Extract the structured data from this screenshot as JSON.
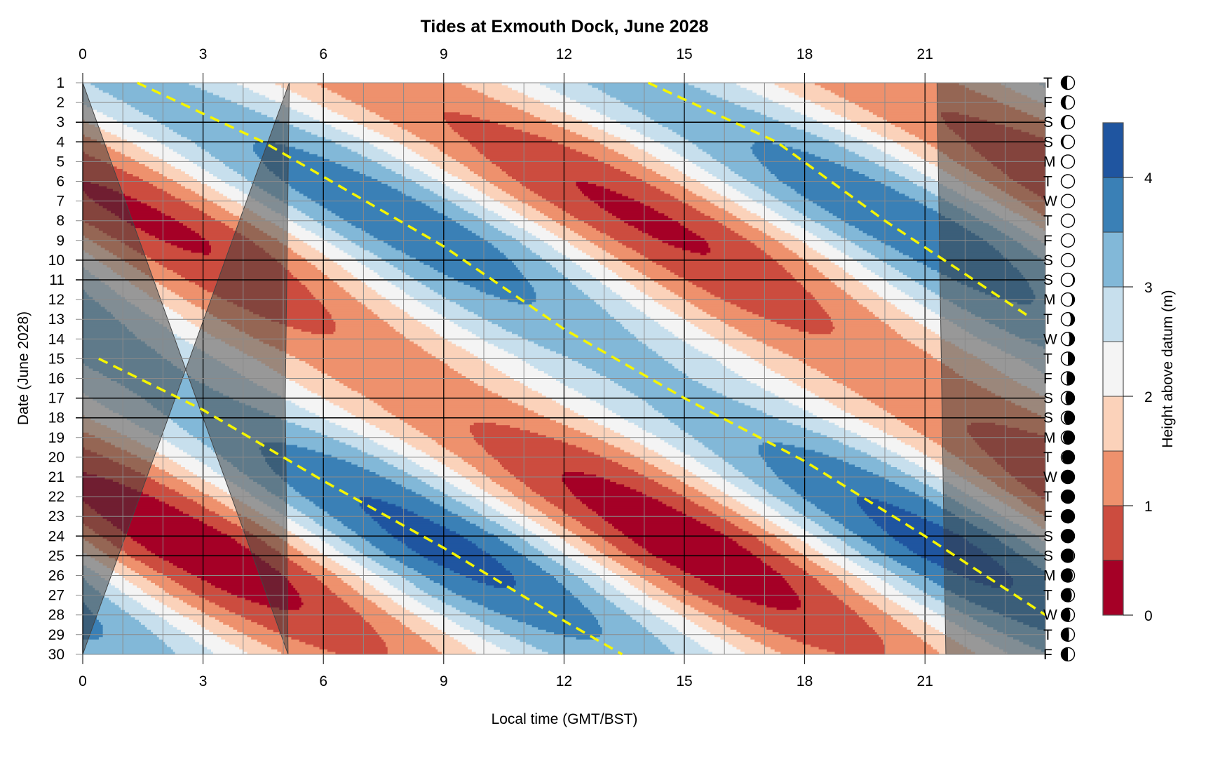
{
  "chart_data": {
    "type": "heatmap",
    "title": "Tides at Exmouth Dock, June 2028",
    "xlabel": "Local time (GMT/BST)",
    "ylabel": "Date (June 2028)",
    "colorbar_label": "Height above datum (m)",
    "xlim": [
      0,
      24
    ],
    "ylim": [
      1,
      30
    ],
    "x_ticks": [
      0,
      3,
      6,
      9,
      12,
      15,
      18,
      21
    ],
    "y_ticks": [
      1,
      2,
      3,
      4,
      5,
      6,
      7,
      8,
      9,
      10,
      11,
      12,
      13,
      14,
      15,
      16,
      17,
      18,
      19,
      20,
      21,
      22,
      23,
      24,
      25,
      26,
      27,
      28,
      29,
      30
    ],
    "colorbar_ticks": [
      0,
      1,
      2,
      3,
      4
    ],
    "levels": [
      0,
      0.5,
      1,
      1.5,
      2,
      2.5,
      3,
      3.5,
      4,
      4.5
    ],
    "level_colors": [
      "#a50026",
      "#cc4c3f",
      "#ee916d",
      "#fbd2ba",
      "#f4f4f4",
      "#c7dfed",
      "#82b8d8",
      "#3a80b6",
      "#1f55a0"
    ],
    "weekend_days": [
      3,
      4,
      10,
      11,
      17,
      18,
      24,
      25
    ],
    "weekday_letters": [
      "T",
      "F",
      "S",
      "S",
      "M",
      "T",
      "W",
      "T",
      "F",
      "S",
      "S",
      "M",
      "T",
      "W",
      "T",
      "F",
      "S",
      "S",
      "M",
      "T",
      "W",
      "T",
      "F",
      "S",
      "S",
      "M",
      "T",
      "W",
      "T",
      "F"
    ],
    "moon_phase": [
      0.27,
      0.31,
      0.34,
      0.37,
      0.41,
      0.44,
      0.48,
      0.51,
      0.54,
      0.58,
      0.61,
      0.64,
      0.68,
      0.71,
      0.75,
      0.78,
      0.81,
      0.85,
      0.88,
      0.92,
      0.95,
      0.98,
      0.02,
      0.05,
      0.08,
      0.12,
      0.15,
      0.19,
      0.22,
      0.25
    ],
    "first_high_water_hour": [
      1.36,
      2.4,
      3.45,
      4.5,
      5.35,
      6.2,
      7.05,
      7.9,
      8.75,
      9.5,
      10.2,
      10.9,
      11.65,
      0.0,
      0.9,
      1.7,
      2.6,
      3.5,
      4.5,
      5.4,
      6.2,
      7.0,
      7.8,
      8.6,
      9.3,
      10.1,
      10.8,
      11.6,
      12.4,
      0.8
    ],
    "high_water_m": [
      3.2,
      3.25,
      3.35,
      3.5,
      3.65,
      3.8,
      3.87,
      3.9,
      3.87,
      3.77,
      3.65,
      3.53,
      3.4,
      3.27,
      3.17,
      3.13,
      3.15,
      3.25,
      3.45,
      3.65,
      3.85,
      4.0,
      4.1,
      4.2,
      4.2,
      4.1,
      3.95,
      3.75,
      3.55,
      3.35
    ],
    "low_water_m": [
      1.1,
      1.05,
      0.95,
      0.8,
      0.65,
      0.5,
      0.43,
      0.4,
      0.43,
      0.53,
      0.65,
      0.77,
      0.9,
      1.03,
      1.13,
      1.17,
      1.15,
      1.05,
      0.85,
      0.65,
      0.45,
      0.3,
      0.2,
      0.1,
      0.1,
      0.2,
      0.35,
      0.55,
      0.75,
      0.95
    ],
    "sunrise": [
      [
        1,
        5.15
      ],
      [
        17,
        5.05
      ],
      [
        30,
        5.12
      ]
    ],
    "sunset": [
      [
        1,
        21.3
      ],
      [
        30,
        21.52
      ]
    ],
    "high_water_trend_lines": [
      [
        [
          1.36,
          1
        ],
        [
          4.5,
          4
        ],
        [
          9.0,
          9.3
        ],
        [
          12.0,
          13.5
        ],
        [
          15.0,
          17
        ],
        [
          18.0,
          20.2
        ],
        [
          21.0,
          24
        ],
        [
          24.0,
          28
        ]
      ],
      [
        [
          14.1,
          1
        ],
        [
          17.3,
          4
        ],
        [
          20.0,
          8
        ],
        [
          23.55,
          12.8
        ]
      ],
      [
        [
          0.4,
          15
        ],
        [
          3.0,
          17.6
        ],
        [
          6.0,
          21.2
        ],
        [
          9.0,
          24.6
        ],
        [
          12.0,
          28.3
        ],
        [
          13.45,
          30
        ]
      ]
    ],
    "grid": true
  }
}
